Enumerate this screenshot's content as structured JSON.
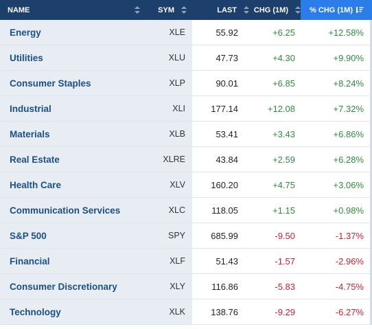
{
  "header": {
    "name": "NAME",
    "sym": "SYM",
    "last": "LAST",
    "chg": "CHG (1M)",
    "pct": "% CHG (1M)"
  },
  "colors": {
    "header_bg": "#1d3f6b",
    "active_header_bg": "#2b7de9",
    "name_col_bg": "#e8edf3",
    "positive": "#2e8b3d",
    "negative": "#c8202f",
    "link": "#1a4f88"
  },
  "icons": {
    "sort": "sort-both-icon",
    "active_sort": "sort-descending-icon"
  },
  "rows": [
    {
      "name": "Energy",
      "sym": "XLE",
      "last": "55.92",
      "chg": "+6.25",
      "pct": "+12.58%",
      "dir": "pos"
    },
    {
      "name": "Utilities",
      "sym": "XLU",
      "last": "47.73",
      "chg": "+4.30",
      "pct": "+9.90%",
      "dir": "pos"
    },
    {
      "name": "Consumer Staples",
      "sym": "XLP",
      "last": "90.01",
      "chg": "+6.85",
      "pct": "+8.24%",
      "dir": "pos"
    },
    {
      "name": "Industrial",
      "sym": "XLI",
      "last": "177.14",
      "chg": "+12.08",
      "pct": "+7.32%",
      "dir": "pos"
    },
    {
      "name": "Materials",
      "sym": "XLB",
      "last": "53.41",
      "chg": "+3.43",
      "pct": "+6.86%",
      "dir": "pos"
    },
    {
      "name": "Real Estate",
      "sym": "XLRE",
      "last": "43.84",
      "chg": "+2.59",
      "pct": "+6.28%",
      "dir": "pos"
    },
    {
      "name": "Health Care",
      "sym": "XLV",
      "last": "160.20",
      "chg": "+4.75",
      "pct": "+3.06%",
      "dir": "pos"
    },
    {
      "name": "Communication Services",
      "sym": "XLC",
      "last": "118.05",
      "chg": "+1.15",
      "pct": "+0.98%",
      "dir": "pos"
    },
    {
      "name": "S&P 500",
      "sym": "SPY",
      "last": "685.99",
      "chg": "-9.50",
      "pct": "-1.37%",
      "dir": "neg"
    },
    {
      "name": "Financial",
      "sym": "XLF",
      "last": "51.43",
      "chg": "-1.57",
      "pct": "-2.96%",
      "dir": "neg"
    },
    {
      "name": "Consumer Discretionary",
      "sym": "XLY",
      "last": "116.86",
      "chg": "-5.83",
      "pct": "-4.75%",
      "dir": "neg"
    },
    {
      "name": "Technology",
      "sym": "XLK",
      "last": "138.76",
      "chg": "-9.29",
      "pct": "-6.27%",
      "dir": "neg"
    }
  ]
}
